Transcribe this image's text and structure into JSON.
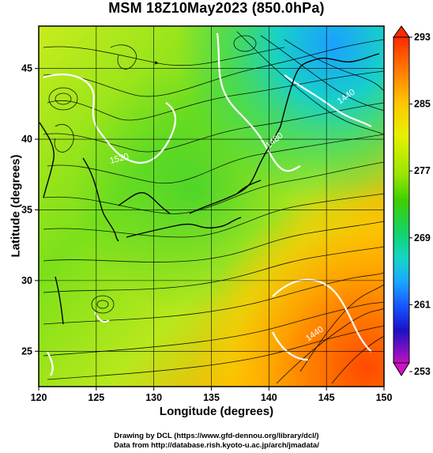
{
  "title": "MSM 18Z10May2023 (850.0hPa)",
  "xlabel": "Longitude (degrees)",
  "ylabel": "Latitude  (degrees)",
  "x_ticks": [
    "120",
    "125",
    "130",
    "135",
    "140",
    "145",
    "150"
  ],
  "y_ticks": [
    "25",
    "30",
    "35",
    "40",
    "45"
  ],
  "colorbar": {
    "ticks": [
      "293",
      "285",
      "277",
      "269",
      "261",
      "253"
    ],
    "colors": [
      "#ff2a00",
      "#ff7a00",
      "#ffc400",
      "#e8f000",
      "#9be600",
      "#3fd000",
      "#12d46a",
      "#14d6c8",
      "#1aa8ff",
      "#1850ff",
      "#1a10c8",
      "#7a10c8",
      "#ff10c0"
    ]
  },
  "contour_labels": [
    "1520",
    "1480",
    "1440",
    "1440"
  ],
  "credits": {
    "line1": "Drawing by DCL (https://www.gfd-dennou.org/library/dcl/)",
    "line2": "Data from http://database.rish.kyoto-u.ac.jp/arch/jmadata/"
  }
}
